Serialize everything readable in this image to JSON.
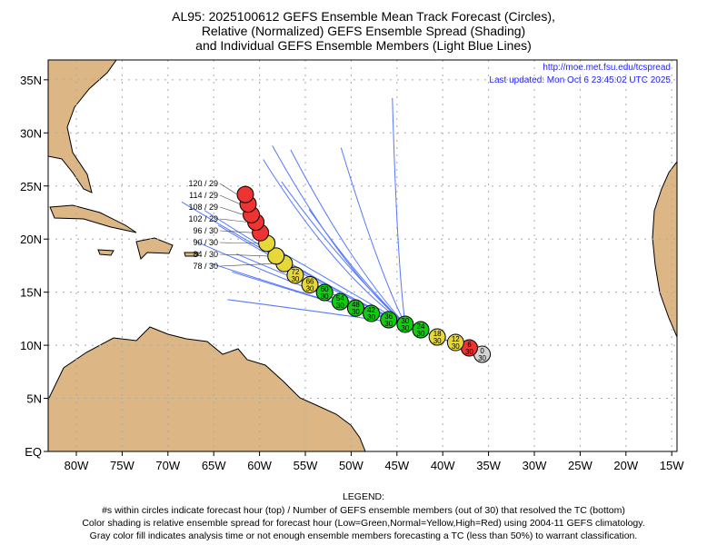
{
  "title_lines": [
    "AL95: 2025100612 GEFS Ensemble Mean Track Forecast (Circles),",
    "Relative (Normalized) GEFS Ensemble Spread (Shading)",
    "and Individual GEFS Ensemble Members (Light Blue Lines)"
  ],
  "url": "http://moe.met.fsu.edu/tcspread",
  "last_updated": "Last updated: Mon Oct 6 23:45:02 UTC 2025",
  "legend": {
    "heading": "LEGEND:",
    "lines": [
      "#s within circles indicate forecast hour (top) / Number of GEFS ensemble members (out of 30) that resolved the TC (bottom)",
      "Color shading is relative ensemble spread for forecast hour (Low=Green,Normal=Yellow,High=Red) using 2004-11 GEFS climatology.",
      "Gray color fill indicates analysis time or not enough ensemble members forecasting a TC (less than 50%) to warrant classification."
    ]
  },
  "colors": {
    "red": "#ee3333",
    "yellow": "#e6d83a",
    "green": "#11cc11",
    "gray": "#d4d4d4",
    "member": "#5577ff",
    "land": "#dcb785"
  },
  "chart_data": {
    "type": "map-track",
    "lon_ticks": [
      "80W",
      "75W",
      "70W",
      "65W",
      "60W",
      "55W",
      "50W",
      "45W",
      "40W",
      "35W",
      "30W",
      "25W",
      "20W",
      "15W"
    ],
    "lon_values": [
      80,
      75,
      70,
      65,
      60,
      55,
      50,
      45,
      40,
      35,
      30,
      25,
      20,
      15
    ],
    "lat_ticks": [
      "EQ",
      "5N",
      "10N",
      "15N",
      "20N",
      "25N",
      "30N",
      "35N"
    ],
    "lat_values": [
      0,
      5,
      10,
      15,
      20,
      25,
      30,
      35
    ],
    "lon_range_W": [
      83,
      14.5
    ],
    "lat_range_N": [
      0,
      37
    ],
    "mean_track": [
      {
        "hour": "0",
        "members": "30",
        "lon": 35.7,
        "lat": 9.15,
        "spread": "gray"
      },
      {
        "hour": "6",
        "members": "30",
        "lon": 37.1,
        "lat": 9.75,
        "spread": "red"
      },
      {
        "hour": "12",
        "members": "30",
        "lon": 38.6,
        "lat": 10.26,
        "spread": "yellow"
      },
      {
        "hour": "18",
        "members": "30",
        "lon": 40.6,
        "lat": 10.78,
        "spread": "yellow"
      },
      {
        "hour": "24",
        "members": "30",
        "lon": 42.4,
        "lat": 11.46,
        "spread": "green"
      },
      {
        "hour": "30",
        "members": "30",
        "lon": 44.1,
        "lat": 11.98,
        "spread": "green"
      },
      {
        "hour": "36",
        "members": "30",
        "lon": 45.9,
        "lat": 12.4,
        "spread": "green"
      },
      {
        "hour": "42",
        "members": "30",
        "lon": 47.8,
        "lat": 13.0,
        "spread": "green"
      },
      {
        "hour": "48",
        "members": "30",
        "lon": 49.5,
        "lat": 13.5,
        "spread": "green"
      },
      {
        "hour": "54",
        "members": "30",
        "lon": 51.2,
        "lat": 14.1,
        "spread": "green"
      },
      {
        "hour": "60",
        "members": "30",
        "lon": 52.9,
        "lat": 14.97,
        "spread": "green"
      },
      {
        "hour": "66",
        "members": "30",
        "lon": 54.5,
        "lat": 15.7,
        "spread": "yellow"
      },
      {
        "hour": "72",
        "members": "30",
        "lon": 56.1,
        "lat": 16.6,
        "spread": "yellow"
      },
      {
        "hour": "78",
        "members": "30",
        "lon": 57.3,
        "lat": 17.7,
        "spread": "yellow"
      },
      {
        "hour": "84",
        "members": "30",
        "lon": 58.2,
        "lat": 18.4,
        "spread": "yellow"
      },
      {
        "hour": "90",
        "members": "30",
        "lon": 59.2,
        "lat": 19.6,
        "spread": "yellow"
      },
      {
        "hour": "96",
        "members": "30",
        "lon": 59.9,
        "lat": 20.6,
        "spread": "red"
      },
      {
        "hour": "102",
        "members": "29",
        "lon": 60.4,
        "lat": 21.6,
        "spread": "red"
      },
      {
        "hour": "108",
        "members": "29",
        "lon": 60.9,
        "lat": 22.3,
        "spread": "red"
      },
      {
        "hour": "114",
        "members": "29",
        "lon": 61.25,
        "lat": 23.3,
        "spread": "red"
      },
      {
        "hour": "120",
        "members": "29",
        "lon": 61.55,
        "lat": 24.2,
        "spread": "red"
      }
    ],
    "members": [
      {
        "mid": [
          54,
          16
        ],
        "end": [
          68.5,
          23.5
        ]
      },
      {
        "mid": [
          54,
          16
        ],
        "end": [
          66,
          22.7
        ]
      },
      {
        "mid": [
          54,
          15.8
        ],
        "end": [
          64.5,
          21.3
        ]
      },
      {
        "mid": [
          55,
          15.2
        ],
        "end": [
          67,
          19.8
        ]
      },
      {
        "mid": [
          55,
          14.8
        ],
        "end": [
          65.3,
          17.7
        ]
      },
      {
        "mid": [
          54,
          14.5
        ],
        "end": [
          63,
          16.9
        ]
      },
      {
        "mid": [
          54,
          15.5
        ],
        "end": [
          62.5,
          18.6
        ]
      },
      {
        "mid": [
          52,
          17
        ],
        "end": [
          59.6,
          27.5
        ]
      },
      {
        "mid": [
          51,
          17
        ],
        "end": [
          58.6,
          28.8
        ]
      },
      {
        "mid": [
          50,
          17.5
        ],
        "end": [
          56.6,
          28.4
        ]
      },
      {
        "mid": [
          47,
          17
        ],
        "end": [
          51.1,
          28.6
        ]
      },
      {
        "mid": [
          45,
          18
        ],
        "end": [
          45.5,
          33.3
        ]
      },
      {
        "mid": [
          52,
          13
        ],
        "end": [
          63.5,
          14.3
        ]
      },
      {
        "mid": [
          53,
          16.5
        ],
        "end": [
          60.3,
          20.1
        ]
      },
      {
        "mid": [
          51,
          17.5
        ],
        "end": [
          57.6,
          25.4
        ]
      },
      {
        "mid": [
          49,
          16
        ],
        "end": [
          54.6,
          22.8
        ]
      }
    ]
  }
}
